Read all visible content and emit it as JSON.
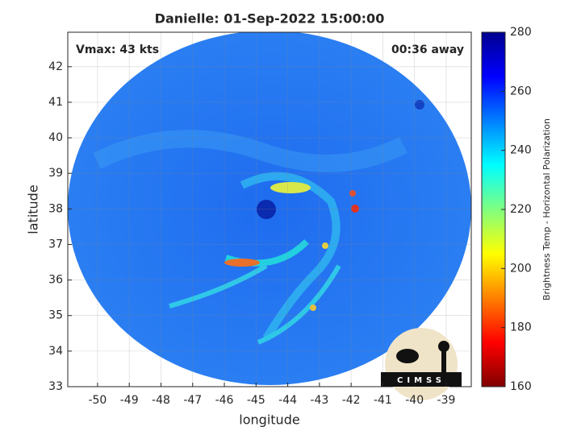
{
  "chart_data": {
    "type": "image",
    "title": "Danielle: 01-Sep-2022 15:00:00",
    "x_label": "longitude",
    "y_label": "latitude",
    "xlim": [
      -50.94,
      -38.21
    ],
    "ylim": [
      33,
      42.97
    ],
    "xticks": [
      -50,
      -49,
      -48,
      -47,
      -46,
      -45,
      -44,
      -43,
      -42,
      -41,
      -40,
      -39
    ],
    "yticks": [
      33,
      34,
      35,
      36,
      37,
      38,
      39,
      40,
      41,
      42
    ],
    "grid": true,
    "annotations": [
      "Vmax: 43 kts",
      "00:36 away"
    ],
    "logo_text": "CIMSS",
    "colorbar": {
      "label": "Brightness Temp - Horizontal Polarization",
      "colormap": "jet_r",
      "lim": [
        160,
        280
      ],
      "ticks": [
        160,
        180,
        200,
        220,
        240,
        260,
        280
      ]
    }
  }
}
